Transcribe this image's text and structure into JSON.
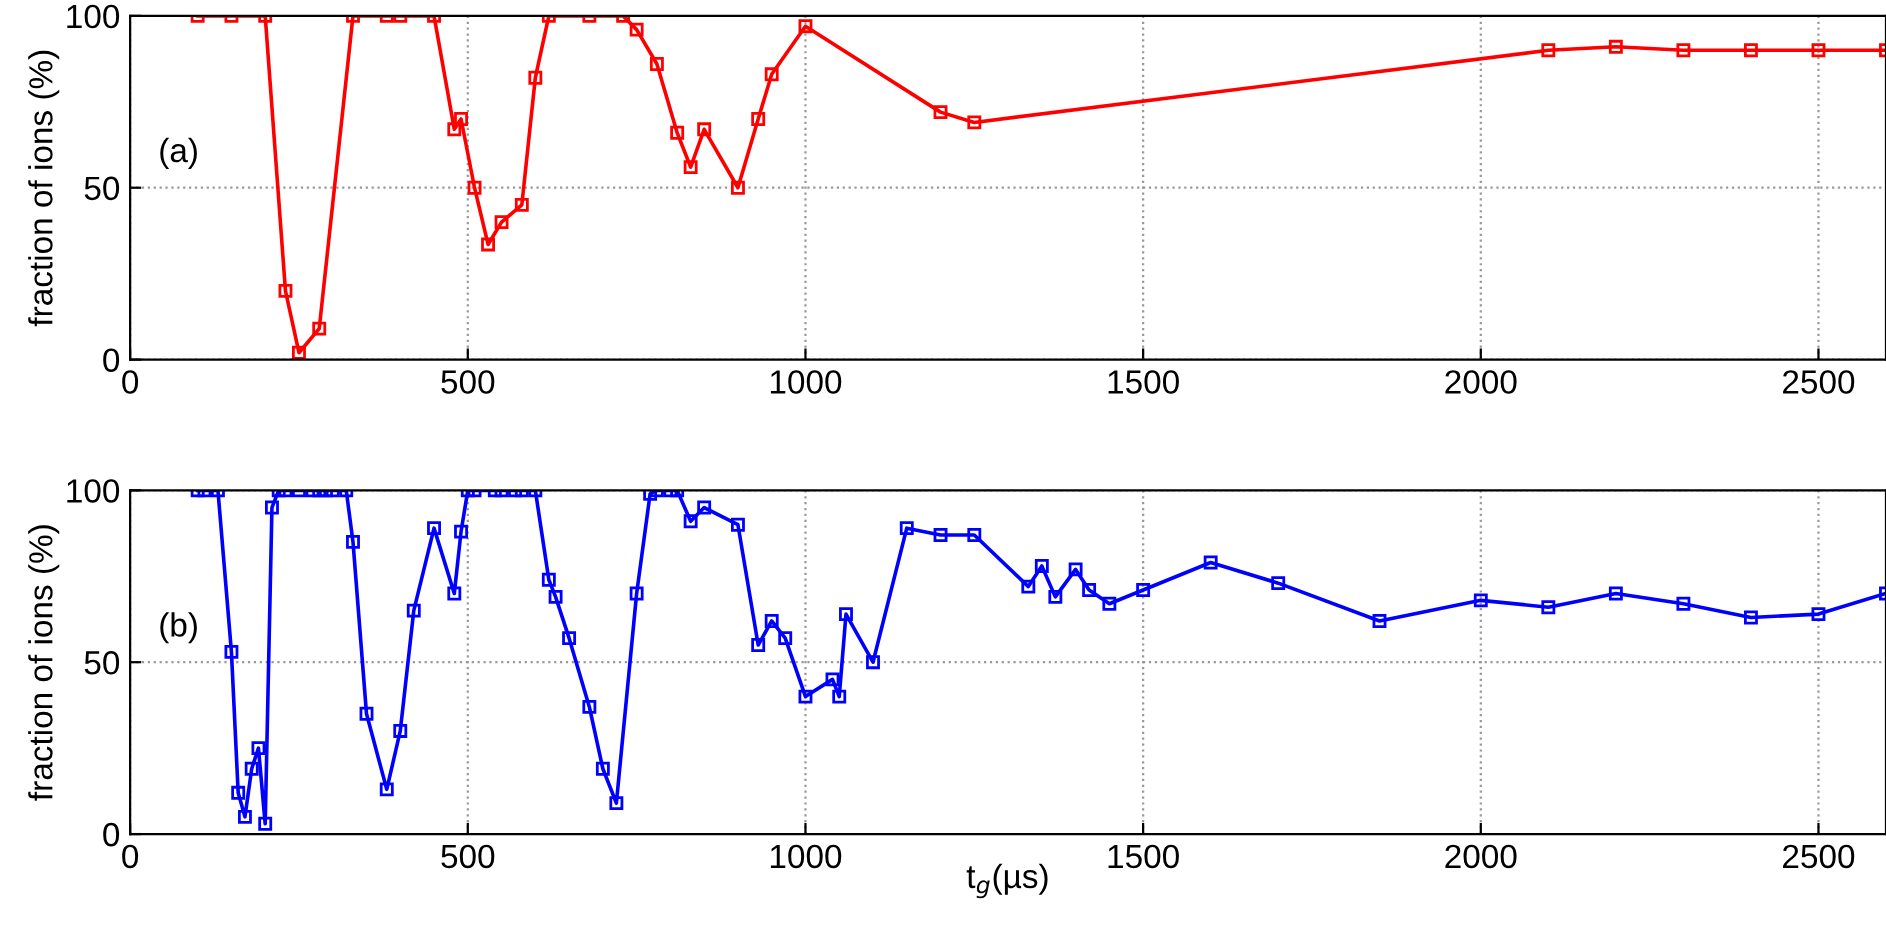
{
  "chart_data": [
    {
      "type": "line",
      "ylabel": "fraction of ions (%)",
      "annotations": [
        "(a)"
      ],
      "series": [
        {
          "color": "#ff0000",
          "x": [
            100,
            150,
            200,
            230,
            250,
            280,
            330,
            380,
            400,
            450,
            480,
            490,
            510,
            530,
            550,
            580,
            600,
            620,
            680,
            730,
            750,
            780,
            810,
            830,
            850,
            900,
            930,
            950,
            1000,
            1200,
            1250,
            2100,
            2200,
            2300,
            2400,
            2500,
            2600
          ],
          "values": [
            100,
            100,
            100,
            20,
            2,
            9,
            100,
            100,
            100,
            100,
            67,
            70,
            50,
            33.5,
            40,
            45,
            82,
            100,
            100,
            100,
            96,
            86,
            66,
            56,
            67,
            50,
            70,
            83,
            97,
            72,
            69,
            90,
            91,
            90,
            90,
            90,
            90
          ]
        }
      ],
      "xlim": [
        0,
        2600
      ],
      "xticks": [
        0,
        500,
        1000,
        1500,
        2000,
        2500
      ],
      "ylim": [
        0,
        100
      ],
      "yticks": [
        0,
        50,
        100
      ],
      "grid": true,
      "marker": "square",
      "line_style": "solid"
    },
    {
      "type": "line",
      "xlabel": "t$_{g}$(µs)",
      "ylabel": "fraction of ions (%)",
      "annotations": [
        "(b)"
      ],
      "series": [
        {
          "color": "#0000ff",
          "x": [
            100,
            110,
            130,
            150,
            160,
            170,
            180,
            190,
            200,
            210,
            220,
            230,
            250,
            270,
            280,
            290,
            300,
            320,
            330,
            350,
            380,
            400,
            420,
            450,
            480,
            490,
            500,
            510,
            540,
            550,
            570,
            580,
            600,
            620,
            630,
            650,
            680,
            700,
            720,
            750,
            770,
            780,
            800,
            810,
            830,
            850,
            900,
            930,
            950,
            970,
            1000,
            1040,
            1050,
            1060,
            1100,
            1150,
            1200,
            1250,
            1330,
            1350,
            1370,
            1400,
            1420,
            1450,
            1500,
            1600,
            1700,
            1850,
            2000,
            2100,
            2200,
            2300,
            2400,
            2500,
            2600
          ],
          "values": [
            100,
            100,
            100,
            53,
            12,
            5,
            19,
            25,
            3,
            95,
            100,
            100,
            100,
            100,
            100,
            100,
            100,
            100,
            85,
            35,
            13,
            30,
            65,
            89,
            70,
            88,
            100,
            100,
            100,
            100,
            100,
            100,
            100,
            74,
            69,
            57,
            37,
            19,
            9,
            70,
            99,
            100,
            100,
            100,
            91,
            95,
            90,
            55,
            62,
            57,
            40,
            45,
            40,
            64,
            50,
            89,
            87,
            87,
            72,
            78,
            69,
            77,
            71,
            67,
            71,
            79,
            73,
            62,
            68,
            66,
            70,
            67,
            63,
            64,
            70
          ]
        }
      ],
      "xlim": [
        0,
        2600
      ],
      "xticks": [
        0,
        500,
        1000,
        1500,
        2000,
        2500
      ],
      "ylim": [
        0,
        100
      ],
      "yticks": [
        0,
        50,
        100
      ],
      "grid": true,
      "marker": "square",
      "line_style": "solid"
    }
  ]
}
